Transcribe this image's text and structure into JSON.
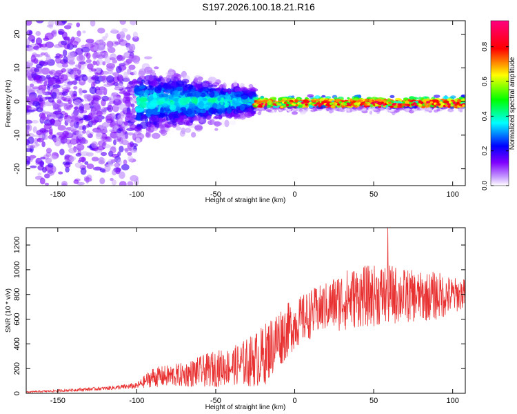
{
  "title": "S197.2026.100.18.21.R16",
  "chart_data": [
    {
      "type": "heatmap",
      "xlabel": "Height of straight line (km)",
      "ylabel": "Frequency (Hz)",
      "xlim": [
        -170,
        108
      ],
      "ylim": [
        -25,
        24
      ],
      "xticks": [
        -150,
        -100,
        -50,
        0,
        50,
        100
      ],
      "yticks": [
        -20,
        -10,
        0,
        10,
        20
      ],
      "colorbar": {
        "label": "Normalized spectral amplitude",
        "range": [
          0,
          0.95
        ],
        "ticks": [
          0.0,
          0.2,
          0.4,
          0.6,
          0.8
        ],
        "tick_labels": [
          "0.0",
          "0.2",
          "0.4",
          "0.6",
          "0.8"
        ],
        "colors": [
          "#ffffff",
          "#7f00ff",
          "#0000ff",
          "#00ffff",
          "#00ff00",
          "#ffff00",
          "#ff0000",
          "#ff0080"
        ]
      },
      "description_regions": [
        {
          "x_range": [
            -170,
            -100
          ],
          "freq_spread_hz": 24,
          "amplitude": 0.15
        },
        {
          "x_range": [
            -100,
            -25
          ],
          "freq_spread_hz": 10,
          "amplitude": 0.35
        },
        {
          "x_range": [
            -25,
            108
          ],
          "freq_spread_hz": 2,
          "amplitude": 0.8
        }
      ]
    },
    {
      "type": "line",
      "xlabel": "Height of straight line (km)",
      "ylabel": "SNR (10 * v/v)",
      "xlim": [
        -170,
        108
      ],
      "ylim": [
        0,
        1340
      ],
      "xticks": [
        -150,
        -100,
        -50,
        0,
        50,
        100
      ],
      "yticks": [
        0,
        200,
        400,
        600,
        800,
        1000,
        1200
      ],
      "color": "#e83030",
      "trend_x": [
        -170,
        -150,
        -120,
        -100,
        -90,
        -70,
        -50,
        -40,
        -30,
        -20,
        -10,
        0,
        10,
        20,
        30,
        40,
        50,
        60,
        70,
        80,
        90,
        100,
        108
      ],
      "trend_y": [
        10,
        20,
        40,
        60,
        130,
        150,
        200,
        220,
        250,
        300,
        450,
        560,
        640,
        700,
        750,
        780,
        790,
        800,
        790,
        780,
        790,
        790,
        810
      ],
      "noise_amplitude": [
        5,
        10,
        15,
        25,
        80,
        100,
        150,
        150,
        200,
        250,
        250,
        200,
        200,
        200,
        250,
        250,
        250,
        250,
        220,
        200,
        200,
        150,
        120
      ],
      "max_y": 1340
    }
  ]
}
